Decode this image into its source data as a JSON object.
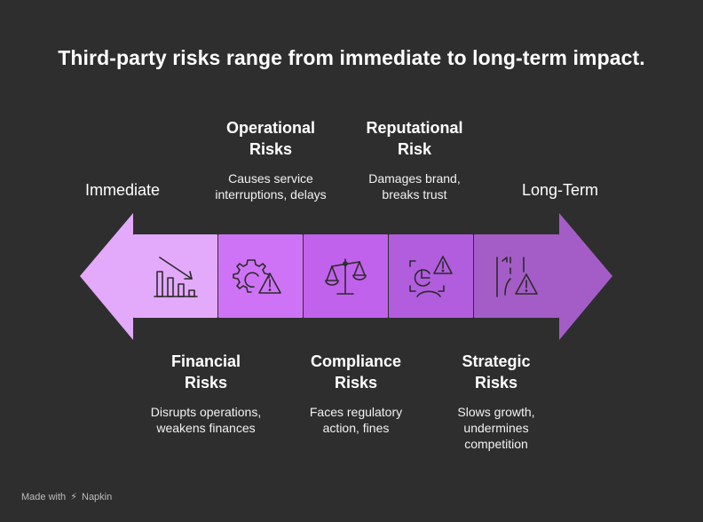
{
  "title": "Third-party risks range from immediate to long-term impact.",
  "scale": {
    "start_label": "Immediate",
    "end_label": "Long-Term"
  },
  "risks_top": [
    {
      "title_line1": "Operational",
      "title_line2": "Risks",
      "desc_line1": "Causes service",
      "desc_line2": "interruptions, delays"
    },
    {
      "title_line1": "Reputational",
      "title_line2": "Risk",
      "desc_line1": "Damages brand,",
      "desc_line2": "breaks trust"
    }
  ],
  "risks_bottom": [
    {
      "title_line1": "Financial",
      "title_line2": "Risks",
      "desc_line1": "Disrupts operations,",
      "desc_line2": "weakens finances",
      "desc_line3": ""
    },
    {
      "title_line1": "Compliance",
      "title_line2": "Risks",
      "desc_line1": "Faces regulatory",
      "desc_line2": "action, fines",
      "desc_line3": ""
    },
    {
      "title_line1": "Strategic",
      "title_line2": "Risks",
      "desc_line1": "Slows growth,",
      "desc_line2": "undermines",
      "desc_line3": "competition"
    }
  ],
  "segments": [
    {
      "icon": "declining-bar-chart-icon",
      "color": "#e3a9fb"
    },
    {
      "icon": "gear-warning-icon",
      "color": "#cf73f6"
    },
    {
      "icon": "balance-scale-icon",
      "color": "#c062eb"
    },
    {
      "icon": "person-chart-warning-icon",
      "color": "#b25dde"
    },
    {
      "icon": "road-warning-icon",
      "color": "#a45dc7"
    }
  ],
  "arrow_colors": {
    "left": "#e3a9fb",
    "right": "#a45dc7"
  },
  "footer": {
    "made_with": "Made with",
    "brand": "Napkin"
  }
}
